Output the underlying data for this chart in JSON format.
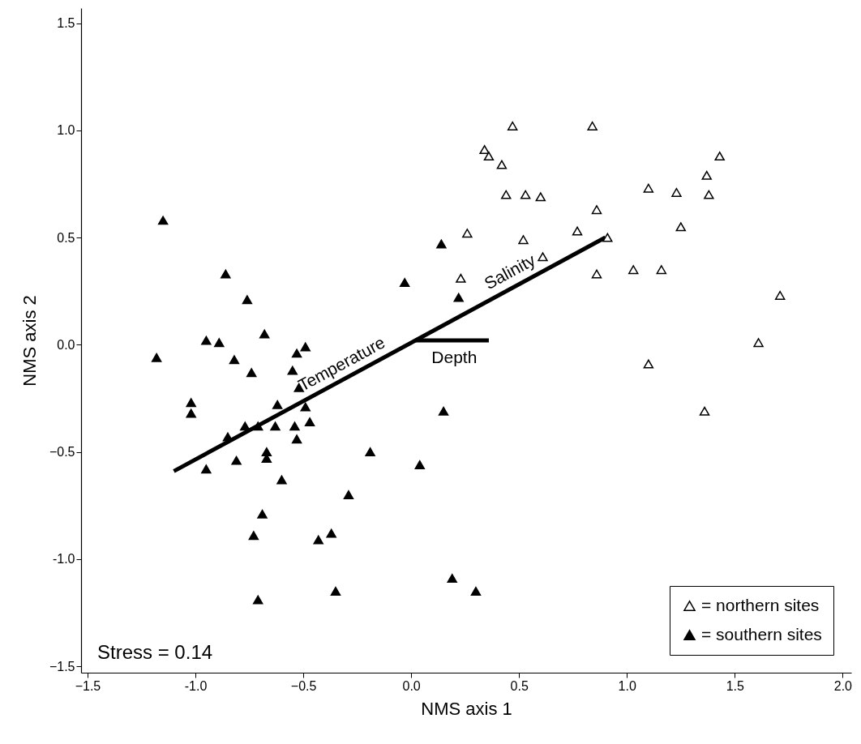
{
  "chart_data": {
    "type": "scatter",
    "xlabel": "NMS axis 1",
    "ylabel": "NMS axis 2",
    "xlim": [
      -1.53,
      2.04
    ],
    "ylim": [
      -1.53,
      1.57
    ],
    "xticks": [
      -1.5,
      {
        "value": -1,
        "label": "-1.0"
      },
      -0.5,
      {
        "value": 0,
        "label": "0.0"
      },
      0.5,
      {
        "value": 1,
        "label": "1.0"
      },
      1.5,
      {
        "value": 2,
        "label": "2.0"
      }
    ],
    "yticks": [
      -1.5,
      {
        "value": -1,
        "label": "-1.0"
      },
      -0.5,
      {
        "value": 0,
        "label": "0.0"
      },
      0.5,
      {
        "value": 1,
        "label": "1.0"
      },
      1.5
    ],
    "grid": false,
    "legend": "bottom right",
    "marker": "triangle",
    "annotations": [
      "Stress = 0.14",
      {
        "text": "Temperature",
        "x": -0.29,
        "y": -0.15
      },
      {
        "text": "Salinity",
        "x": 0.49,
        "y": 0.28
      },
      {
        "text": "Depth",
        "x": 0.2,
        "y": 0.02
      }
    ],
    "series": [
      {
        "name": "= northern sites",
        "color": "#ffffff",
        "x": [
          0.47,
          0.84,
          0.34,
          0.36,
          0.42,
          0.44,
          0.53,
          0.6,
          0.86,
          0.26,
          0.52,
          0.77,
          0.91,
          0.61,
          0.23,
          0.86,
          1.43,
          1.37,
          1.1,
          1.23,
          1.38,
          1.25,
          1.03,
          1.16,
          1.71,
          1.61,
          1.1,
          1.36
        ],
        "values": [
          1.02,
          1.02,
          0.91,
          0.88,
          0.84,
          0.7,
          0.7,
          0.69,
          0.63,
          0.52,
          0.49,
          0.53,
          0.5,
          0.41,
          0.31,
          0.33,
          0.88,
          0.79,
          0.73,
          0.71,
          0.7,
          0.55,
          0.35,
          0.35,
          0.23,
          0.01,
          -0.09,
          -0.31
        ]
      },
      {
        "name": "= southern sites",
        "color": "#000000",
        "x": [
          -1.15,
          -0.86,
          -0.76,
          -0.68,
          -0.95,
          -0.89,
          -1.18,
          -0.82,
          -0.74,
          -0.49,
          -0.53,
          -0.55,
          -0.52,
          -0.62,
          -0.49,
          -1.02,
          -1.02,
          -0.77,
          -0.71,
          -0.63,
          -0.54,
          -0.47,
          -0.85,
          -0.53,
          -0.67,
          -0.67,
          -0.81,
          -0.95,
          -0.6,
          -0.29,
          -0.19,
          -0.69,
          -0.73,
          -0.43,
          -0.37,
          -0.35,
          -0.71,
          0.14,
          -0.03,
          0.22,
          0.15,
          0.04,
          0.19,
          0.3
        ],
        "values": [
          0.58,
          0.33,
          0.21,
          0.05,
          0.02,
          0.01,
          -0.06,
          -0.07,
          -0.13,
          -0.01,
          -0.04,
          -0.12,
          -0.2,
          -0.28,
          -0.29,
          -0.27,
          -0.32,
          -0.38,
          -0.38,
          -0.38,
          -0.38,
          -0.36,
          -0.43,
          -0.44,
          -0.5,
          -0.53,
          -0.54,
          -0.58,
          -0.63,
          -0.7,
          -0.5,
          -0.79,
          -0.89,
          -0.91,
          -0.88,
          -1.15,
          -1.19,
          0.47,
          0.29,
          0.22,
          -0.31,
          -0.56,
          -1.09,
          -1.15
        ]
      },
      {
        "type": "line",
        "color": "#000000",
        "marker": "none",
        "x": [
          -1.1,
          0.02,
          0.9
        ],
        "values": [
          -0.59,
          0.02,
          0.5
        ]
      },
      {
        "type": "line",
        "color": "#000000",
        "marker": "none",
        "x": [
          0.02,
          0.36
        ],
        "values": [
          0.02,
          0.02
        ]
      }
    ]
  }
}
